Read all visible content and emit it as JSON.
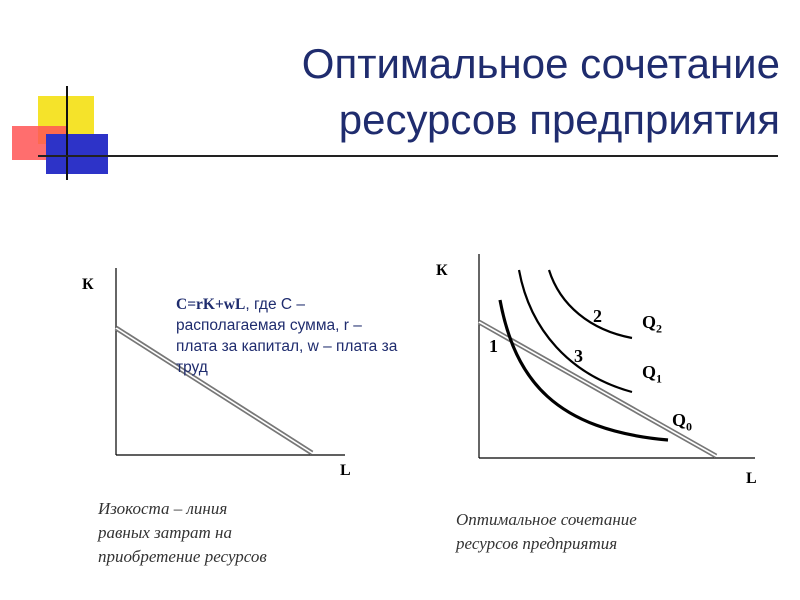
{
  "title": {
    "line1": "Оптимальное сочетание",
    "line2": "ресурсов предприятия"
  },
  "left_diagram": {
    "y_label": "К",
    "x_label": "L",
    "formula_bold": "C=rK+wL",
    "formula_rest": ", где С – располагаемая сумма, r – плата за капитал, w – плата за труд",
    "caption_lines": [
      "Изокоста – линия",
      "равных затрат на",
      "приобретение ресурсов"
    ]
  },
  "right_diagram": {
    "y_label": "К",
    "x_label": "L",
    "point_labels": [
      "1",
      "2",
      "3"
    ],
    "curves": [
      {
        "name": "Q",
        "sub": "2"
      },
      {
        "name": "Q",
        "sub": "1"
      },
      {
        "name": "Q",
        "sub": "0"
      }
    ],
    "caption_lines": [
      "Оптимальное сочетание",
      "ресурсов предприятия"
    ]
  },
  "colors": {
    "title": "#1f2c6e",
    "deco_yellow": "#f5e32a",
    "deco_red": "#ff4a4a",
    "deco_blue": "#2d33c8"
  }
}
